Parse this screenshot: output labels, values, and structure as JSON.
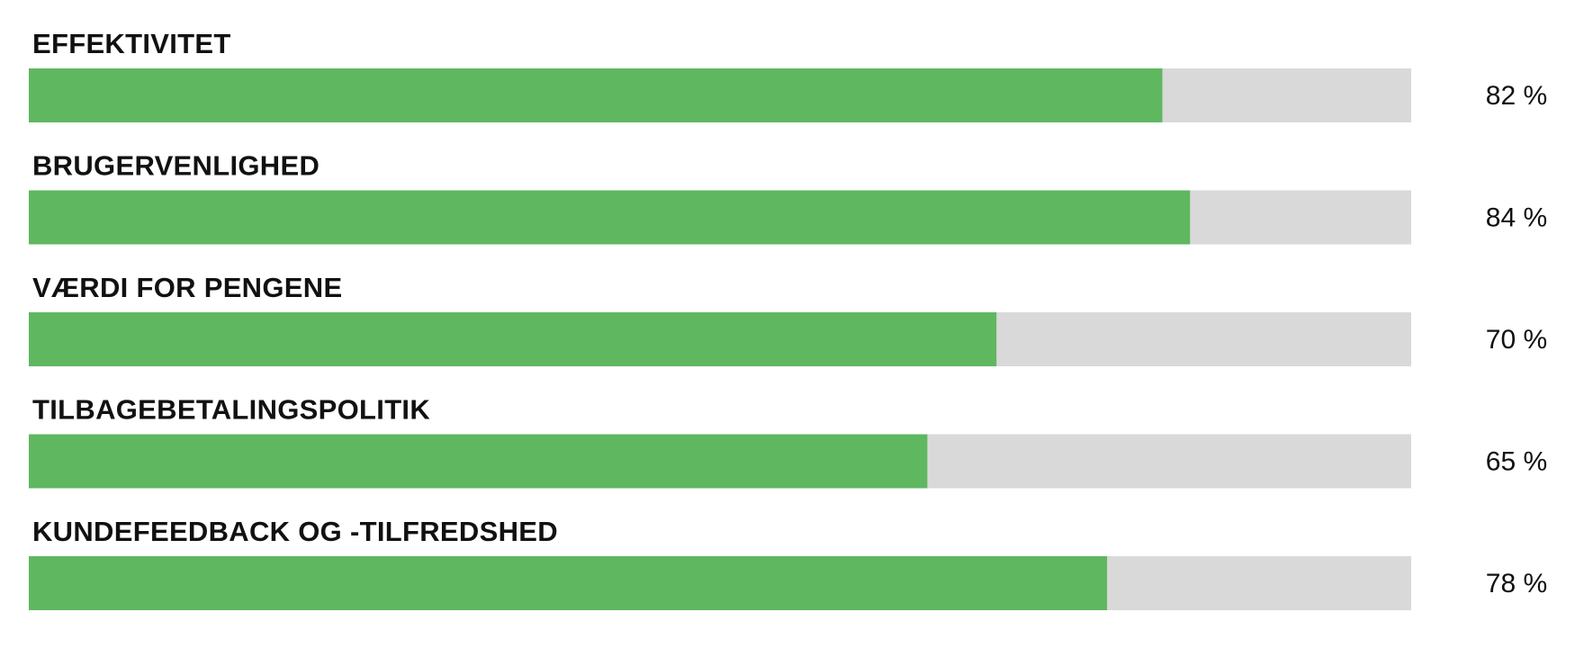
{
  "chart_data": {
    "type": "bar",
    "orientation": "horizontal",
    "categories": [
      "EFFEKTIVITET",
      "BRUGERVENLIGHED",
      "VÆRDI FOR PENGENE",
      "TILBAGEBETALINGSPOLITIK",
      "KUNDEFEEDBACK OG -TILFREDSHED"
    ],
    "values": [
      82,
      84,
      70,
      65,
      78
    ],
    "value_labels": [
      "82 %",
      "84 %",
      "70 %",
      "65 %",
      "78 %"
    ],
    "xlim": [
      0,
      100
    ],
    "color": "#5fb760",
    "track_color": "#d9d9d9"
  }
}
